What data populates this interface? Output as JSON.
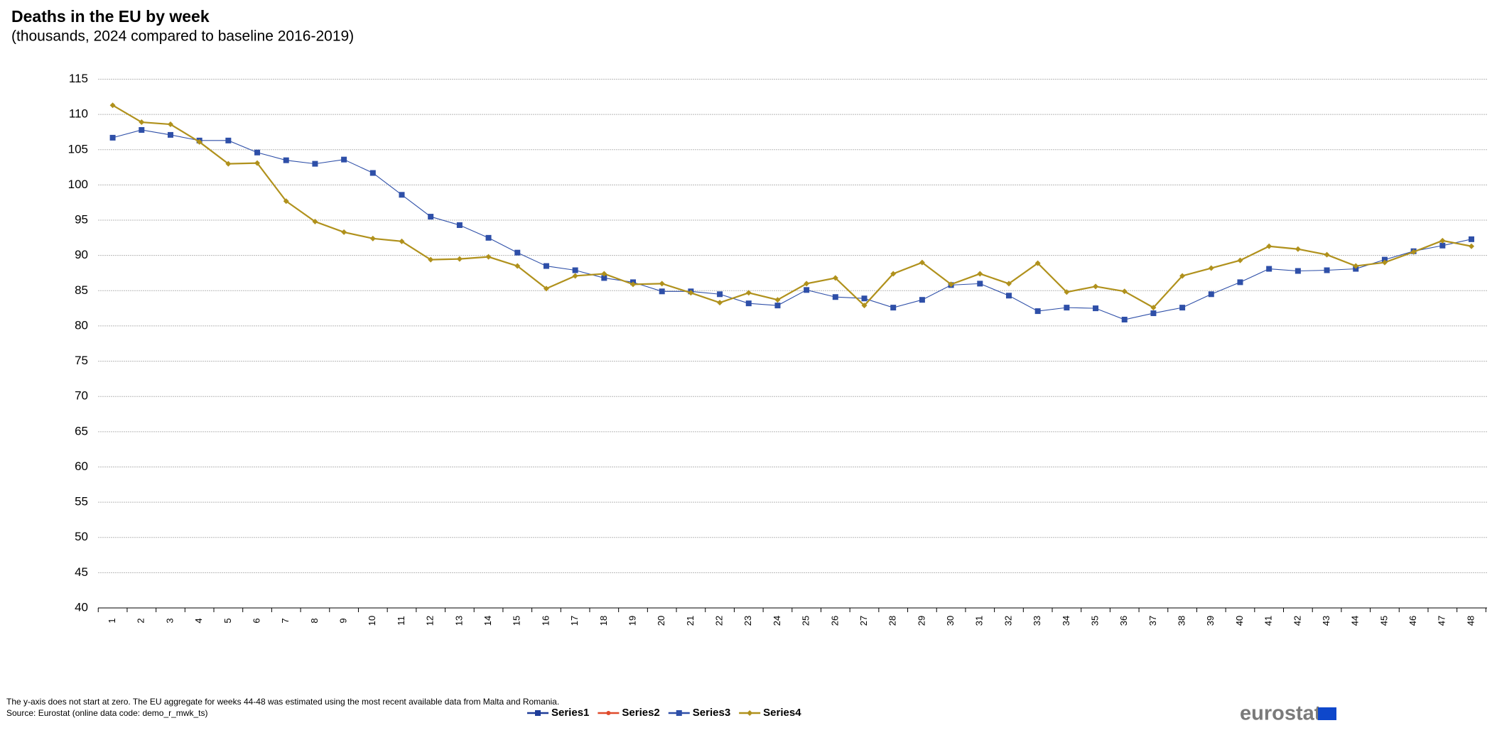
{
  "chart_data": {
    "type": "line",
    "title": "Deaths in the EU by week",
    "subtitle": "(thousands, 2024 compared to baseline 2016-2019)",
    "categories": [
      "1",
      "2",
      "3",
      "4",
      "5",
      "6",
      "7",
      "8",
      "9",
      "10",
      "11",
      "12",
      "13",
      "14",
      "15",
      "16",
      "17",
      "18",
      "19",
      "20",
      "21",
      "22",
      "23",
      "24",
      "25",
      "26",
      "27",
      "28",
      "29",
      "30",
      "31",
      "32",
      "33",
      "34",
      "35",
      "36",
      "37",
      "38",
      "39",
      "40",
      "41",
      "42",
      "43",
      "44",
      "45",
      "46",
      "47",
      "48"
    ],
    "series": [
      {
        "name": "Series1",
        "color": "#1f3d99",
        "marker": "square",
        "values": [
          null,
          null,
          null,
          null,
          null,
          null,
          null,
          null,
          null,
          null,
          null,
          null,
          null,
          null,
          null,
          null,
          null,
          null,
          null,
          null,
          null,
          null,
          null,
          null,
          null,
          null,
          null,
          null,
          null,
          null,
          null,
          null,
          null,
          null,
          null,
          null,
          null,
          null,
          null,
          null,
          null,
          null,
          null,
          null,
          null,
          null,
          null,
          null
        ]
      },
      {
        "name": "Series2",
        "color": "#e04a2b",
        "marker": "circle",
        "values": [
          null,
          null,
          null,
          null,
          null,
          null,
          null,
          null,
          null,
          null,
          null,
          null,
          null,
          null,
          null,
          null,
          null,
          null,
          null,
          null,
          null,
          null,
          null,
          null,
          null,
          null,
          null,
          null,
          null,
          null,
          null,
          null,
          null,
          null,
          null,
          null,
          null,
          null,
          null,
          null,
          null,
          null,
          null,
          null,
          null,
          null,
          null,
          null
        ]
      },
      {
        "name": "Series3",
        "color": "#2e4fa8",
        "marker": "square",
        "values": [
          106.7,
          107.8,
          107.1,
          106.3,
          106.3,
          104.6,
          103.5,
          103.0,
          103.6,
          101.7,
          98.6,
          95.5,
          94.3,
          92.5,
          90.4,
          88.5,
          87.9,
          86.8,
          86.2,
          84.9,
          84.9,
          84.5,
          83.2,
          82.9,
          85.1,
          84.1,
          83.9,
          82.6,
          83.7,
          85.8,
          86.0,
          84.3,
          82.1,
          82.6,
          82.5,
          80.9,
          81.8,
          82.6,
          84.5,
          86.2,
          88.1,
          87.8,
          87.9,
          88.1,
          89.4,
          90.6,
          91.4,
          92.3
        ]
      },
      {
        "name": "Series4",
        "color": "#b0911c",
        "marker": "diamond",
        "values": [
          111.3,
          108.9,
          108.6,
          106.1,
          103.0,
          103.1,
          97.7,
          94.8,
          93.3,
          92.4,
          92.0,
          89.4,
          89.5,
          89.8,
          88.5,
          85.3,
          87.1,
          87.4,
          85.9,
          86.0,
          84.7,
          83.3,
          84.7,
          83.7,
          86.0,
          86.8,
          82.9,
          87.4,
          89.0,
          85.9,
          87.4,
          86.0,
          88.9,
          84.8,
          85.6,
          84.9,
          82.6,
          87.1,
          88.2,
          89.3,
          91.3,
          90.9,
          90.1,
          88.5,
          89.0,
          90.5,
          92.1,
          91.3
        ]
      }
    ],
    "ylim": [
      40,
      115
    ],
    "yticks": [
      40,
      45,
      50,
      55,
      60,
      65,
      70,
      75,
      80,
      85,
      90,
      95,
      100,
      105,
      110,
      115
    ],
    "grid": true,
    "legend": "bottom",
    "footnote": "The y-axis does not start at zero. The EU aggregate for weeks 44-48 was estimated using the most recent available data from Malta and Romania.",
    "source": "Source: Eurostat (online data code: demo_r_mwk_ts)",
    "logo": "eurostat"
  }
}
